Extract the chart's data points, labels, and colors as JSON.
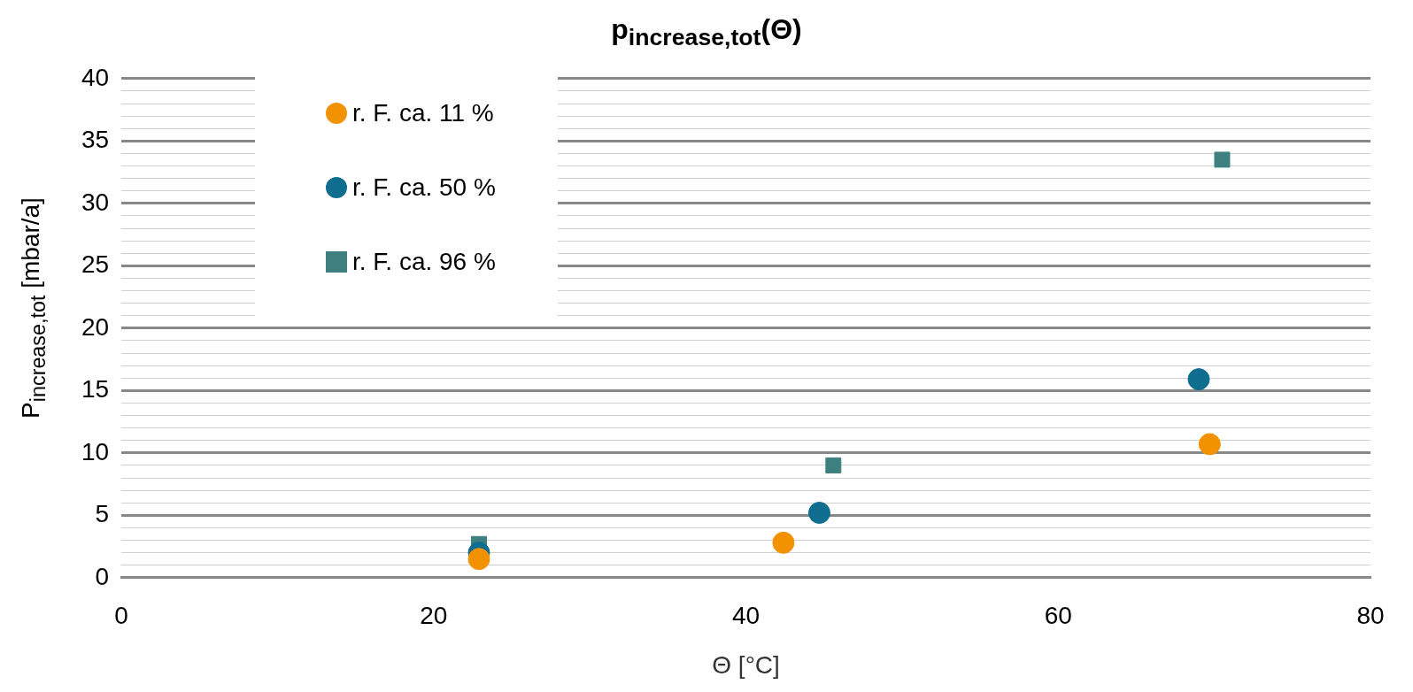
{
  "chart_data": {
    "type": "scatter",
    "title": "p$_{increase,tot}$(Θ)",
    "xlabel": "Θ [°C]",
    "ylabel": "P$_{increase,tot}$ [mbar/a]",
    "series": [
      {
        "name": "r. F. ca. 11 %",
        "color": "#f39200",
        "marker": "circle",
        "x": [
          22.9,
          42.4,
          69.7
        ],
        "values": [
          1.5,
          2.8,
          10.7
        ]
      },
      {
        "name": "r. F. ca. 50 %",
        "color": "#0f6e8f",
        "marker": "circle",
        "x": [
          22.9,
          44.7,
          69.0
        ],
        "values": [
          2.0,
          5.2,
          15.9
        ]
      },
      {
        "name": "r. F. ca. 96 %",
        "color": "#3e8080",
        "marker": "square",
        "x": [
          22.9,
          45.6,
          70.5
        ],
        "values": [
          2.7,
          9.0,
          33.5
        ]
      }
    ],
    "xlim": [
      0,
      80
    ],
    "xticks": [
      0,
      20,
      40,
      60,
      80
    ],
    "ylim": [
      0,
      40
    ],
    "yticks": [
      0,
      {
        "value": 1,
        "label": null
      },
      {
        "value": 2,
        "label": null
      },
      {
        "value": 3,
        "label": null
      },
      {
        "value": 4,
        "label": null
      },
      5,
      {
        "value": 6,
        "label": null
      },
      {
        "value": 7,
        "label": null
      },
      {
        "value": 8,
        "label": null
      },
      {
        "value": 9,
        "label": null
      },
      10,
      {
        "value": 11,
        "label": null
      },
      {
        "value": 12,
        "label": null
      },
      {
        "value": 13,
        "label": null
      },
      {
        "value": 14,
        "label": null
      },
      15,
      {
        "value": 16,
        "label": null
      },
      {
        "value": 17,
        "label": null
      },
      {
        "value": 18,
        "label": null
      },
      {
        "value": 19,
        "label": null
      },
      20,
      {
        "value": 21,
        "label": null
      },
      {
        "value": 22,
        "label": null
      },
      {
        "value": 23,
        "label": null
      },
      {
        "value": 24,
        "label": null
      },
      25,
      {
        "value": 26,
        "label": null
      },
      {
        "value": 27,
        "label": null
      },
      {
        "value": 28,
        "label": null
      },
      {
        "value": 29,
        "label": null
      },
      30,
      {
        "value": 31,
        "label": null
      },
      {
        "value": 32,
        "label": null
      },
      {
        "value": 33,
        "label": null
      },
      {
        "value": 34,
        "label": null
      },
      35,
      {
        "value": 36,
        "label": null
      },
      {
        "value": 37,
        "label": null
      },
      {
        "value": 38,
        "label": null
      },
      {
        "value": 39,
        "label": null
      },
      40
    ],
    "grid": "y",
    "legend": "top left"
  }
}
